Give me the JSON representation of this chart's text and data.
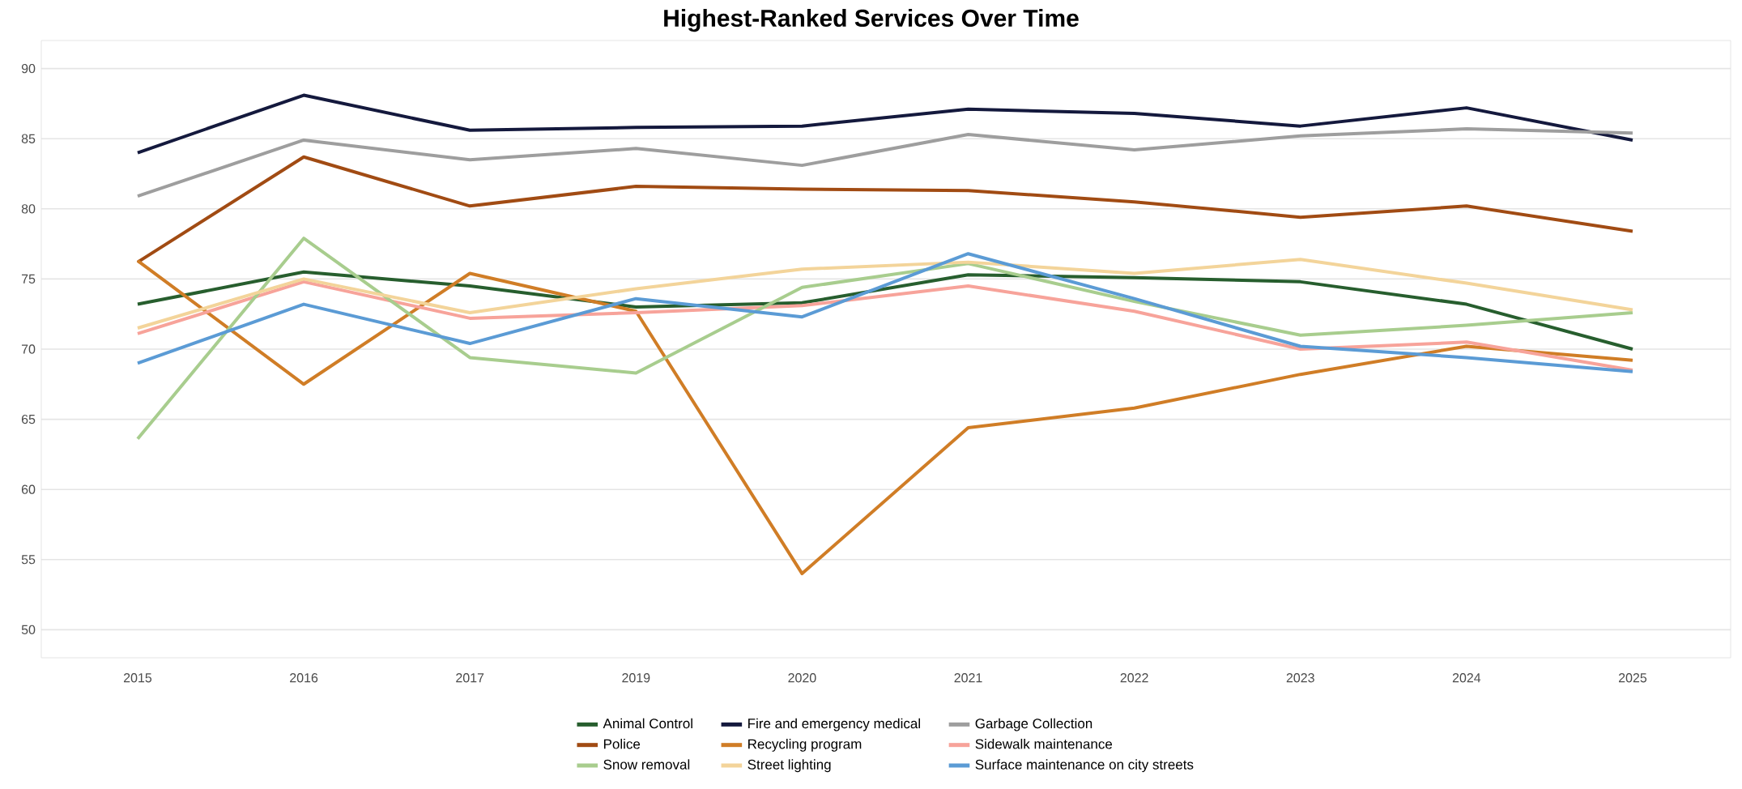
{
  "chart_data": {
    "type": "line",
    "title": "Highest-Ranked Services Over Time",
    "categories": [
      "2015",
      "2016",
      "2017",
      "2019",
      "2020",
      "2021",
      "2022",
      "2023",
      "2024",
      "2025"
    ],
    "series": [
      {
        "name": "Animal Control",
        "color": "#275e2e",
        "values": [
          73.2,
          75.5,
          74.5,
          73.0,
          73.3,
          75.3,
          75.1,
          74.8,
          73.2,
          70.0
        ]
      },
      {
        "name": "Fire and emergency medical",
        "color": "#14193d",
        "values": [
          84.0,
          88.1,
          85.6,
          85.8,
          85.9,
          87.1,
          86.8,
          85.9,
          87.2,
          84.9
        ]
      },
      {
        "name": "Garbage Collection",
        "color": "#9e9e9e",
        "values": [
          80.9,
          84.9,
          83.5,
          84.3,
          83.1,
          85.3,
          84.2,
          85.2,
          85.7,
          85.4
        ]
      },
      {
        "name": "Police",
        "color": "#a14b13",
        "values": [
          76.2,
          83.7,
          80.2,
          81.6,
          81.4,
          81.3,
          80.5,
          79.4,
          80.2,
          78.4
        ]
      },
      {
        "name": "Recycling program",
        "color": "#d07d26",
        "values": [
          76.3,
          67.5,
          75.4,
          72.7,
          54.0,
          64.4,
          65.8,
          68.2,
          70.2,
          69.2
        ]
      },
      {
        "name": "Sidewalk maintenance",
        "color": "#f7a39a",
        "values": [
          71.1,
          74.8,
          72.2,
          72.6,
          73.1,
          74.5,
          72.7,
          70.0,
          70.5,
          68.5
        ]
      },
      {
        "name": "Snow removal",
        "color": "#a8cd8e",
        "values": [
          63.6,
          77.9,
          69.4,
          68.3,
          74.4,
          76.1,
          73.4,
          71.0,
          71.7,
          72.6
        ]
      },
      {
        "name": "Street lighting",
        "color": "#f3d49a",
        "values": [
          71.5,
          75.0,
          72.6,
          74.3,
          75.7,
          76.2,
          75.4,
          76.4,
          74.7,
          72.8
        ]
      },
      {
        "name": "Surface maintenance on city streets",
        "color": "#5b9bd5",
        "values": [
          69.0,
          73.2,
          70.4,
          73.6,
          72.3,
          76.8,
          73.6,
          70.2,
          69.4,
          68.4
        ]
      }
    ],
    "ylim": [
      48,
      92
    ],
    "yticks": [
      50,
      55,
      60,
      65,
      70,
      75,
      80,
      85,
      90
    ],
    "grid": "y",
    "legend": "bottom",
    "marker": "none",
    "line_style": "solid"
  }
}
